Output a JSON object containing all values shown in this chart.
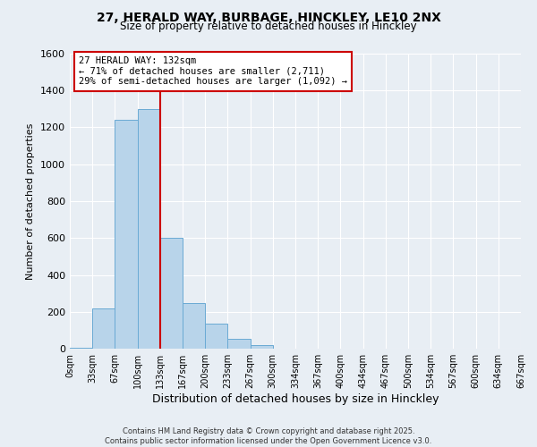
{
  "title": "27, HERALD WAY, BURBAGE, HINCKLEY, LE10 2NX",
  "subtitle": "Size of property relative to detached houses in Hinckley",
  "xlabel": "Distribution of detached houses by size in Hinckley",
  "ylabel": "Number of detached properties",
  "bin_labels": [
    "0sqm",
    "33sqm",
    "67sqm",
    "100sqm",
    "133sqm",
    "167sqm",
    "200sqm",
    "233sqm",
    "267sqm",
    "300sqm",
    "334sqm",
    "367sqm",
    "400sqm",
    "434sqm",
    "467sqm",
    "500sqm",
    "534sqm",
    "567sqm",
    "600sqm",
    "634sqm",
    "667sqm"
  ],
  "bar_values": [
    5,
    220,
    1240,
    1300,
    600,
    245,
    135,
    55,
    20,
    0,
    0,
    0,
    0,
    0,
    0,
    0,
    0,
    0,
    0,
    0
  ],
  "bar_color": "#b8d4ea",
  "bar_edge_color": "#6aaad4",
  "ylim": [
    0,
    1600
  ],
  "yticks": [
    0,
    200,
    400,
    600,
    800,
    1000,
    1200,
    1400,
    1600
  ],
  "property_line_x": 4,
  "property_line_color": "#cc0000",
  "annotation_title": "27 HERALD WAY: 132sqm",
  "annotation_line1": "← 71% of detached houses are smaller (2,711)",
  "annotation_line2": "29% of semi-detached houses are larger (1,092) →",
  "annotation_box_color": "#ffffff",
  "annotation_box_edge": "#cc0000",
  "footer_line1": "Contains HM Land Registry data © Crown copyright and database right 2025.",
  "footer_line2": "Contains public sector information licensed under the Open Government Licence v3.0.",
  "background_color": "#e8eef4",
  "grid_color": "#ffffff"
}
